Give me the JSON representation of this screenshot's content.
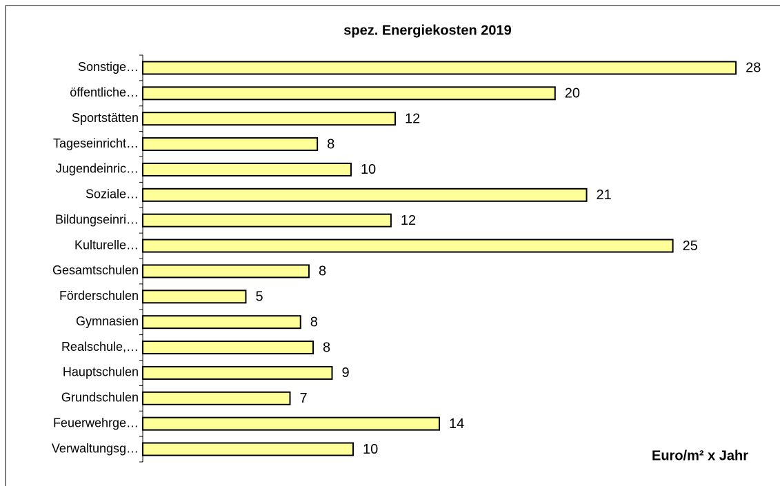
{
  "chart_data": {
    "type": "bar",
    "orientation": "horizontal",
    "title": "spez. Energiekosten 2019",
    "unit_label": "Euro/m² x Jahr",
    "categories": [
      "Sonstige…",
      "öffentliche…",
      "Sportstätten",
      "Tageseinricht…",
      "Jugendeinric…",
      "Soziale…",
      "Bildungseinri…",
      "Kulturelle…",
      "Gesamtschulen",
      "Förderschulen",
      "Gymnasien",
      "Realschule,…",
      "Hauptschulen",
      "Grundschulen",
      "Feuerwehrge…",
      "Verwaltungsg…"
    ],
    "values": [
      28.2,
      19.6,
      12.0,
      8.3,
      9.9,
      21.1,
      11.8,
      25.2,
      7.9,
      4.9,
      7.5,
      8.1,
      9.0,
      7.0,
      14.1,
      10.0
    ],
    "value_labels": [
      "28",
      "20",
      "12",
      "8",
      "10",
      "21",
      "12",
      "25",
      "8",
      "5",
      "8",
      "8",
      "9",
      "7",
      "14",
      "10"
    ],
    "color": "#ffff99",
    "xlim": [
      0,
      30
    ]
  }
}
